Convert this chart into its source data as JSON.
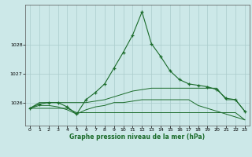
{
  "title": "Graphe pression niveau de la mer (hPa)",
  "bg_color": "#cce8e8",
  "grid_color": "#aacccc",
  "line_color": "#1a6b2a",
  "xlim": [
    -0.5,
    23.5
  ],
  "ylim": [
    1025.2,
    1029.4
  ],
  "yticks": [
    1026,
    1027,
    1028
  ],
  "xticks": [
    0,
    1,
    2,
    3,
    4,
    5,
    6,
    7,
    8,
    9,
    10,
    11,
    12,
    13,
    14,
    15,
    16,
    17,
    18,
    19,
    20,
    21,
    22,
    23
  ],
  "curve_x": [
    0,
    1,
    2,
    3,
    4,
    5,
    6,
    7,
    8,
    9,
    10,
    11,
    12,
    13,
    14,
    15,
    16,
    17,
    18,
    19,
    20,
    21,
    22,
    23
  ],
  "curve_y": [
    1025.8,
    1025.95,
    1026.0,
    1026.0,
    1025.85,
    1025.6,
    1026.1,
    1026.35,
    1026.65,
    1027.2,
    1027.75,
    1028.35,
    1029.15,
    1028.05,
    1027.6,
    1027.1,
    1026.8,
    1026.65,
    1026.6,
    1026.55,
    1026.45,
    1026.15,
    1026.1,
    1025.7
  ],
  "step_line1_x": [
    0,
    1,
    2,
    3,
    4,
    5,
    6,
    7,
    8,
    9,
    10,
    11,
    12,
    13,
    14,
    15,
    16,
    17,
    18,
    19,
    20,
    21,
    22,
    23
  ],
  "step_line1_y": [
    1025.8,
    1026.0,
    1026.0,
    1026.0,
    1026.0,
    1026.0,
    1026.0,
    1026.05,
    1026.1,
    1026.2,
    1026.3,
    1026.4,
    1026.45,
    1026.5,
    1026.5,
    1026.5,
    1026.5,
    1026.5,
    1026.5,
    1026.5,
    1026.5,
    1026.1,
    1026.1,
    1025.7
  ],
  "step_line2_x": [
    0,
    1,
    2,
    3,
    4,
    5,
    6,
    7,
    8,
    9,
    10,
    11,
    12,
    13,
    14,
    15,
    16,
    17,
    18,
    19,
    20,
    21,
    22,
    23
  ],
  "step_line2_y": [
    1025.8,
    1025.9,
    1025.9,
    1025.85,
    1025.75,
    1025.6,
    1025.75,
    1025.85,
    1025.9,
    1026.0,
    1026.0,
    1026.05,
    1026.1,
    1026.1,
    1026.1,
    1026.1,
    1026.1,
    1026.1,
    1025.9,
    1025.8,
    1025.7,
    1025.6,
    1025.5,
    1025.4
  ],
  "step_line3_x": [
    0,
    1,
    2,
    3,
    4,
    5,
    6,
    7,
    8,
    9,
    10,
    11,
    12,
    13,
    14,
    15,
    16,
    17,
    18,
    19,
    20,
    21,
    22,
    23
  ],
  "step_line3_y": [
    1025.8,
    1025.8,
    1025.8,
    1025.8,
    1025.8,
    1025.65,
    1025.65,
    1025.65,
    1025.65,
    1025.65,
    1025.65,
    1025.65,
    1025.65,
    1025.65,
    1025.65,
    1025.65,
    1025.65,
    1025.65,
    1025.65,
    1025.65,
    1025.65,
    1025.65,
    1025.65,
    1025.4
  ]
}
